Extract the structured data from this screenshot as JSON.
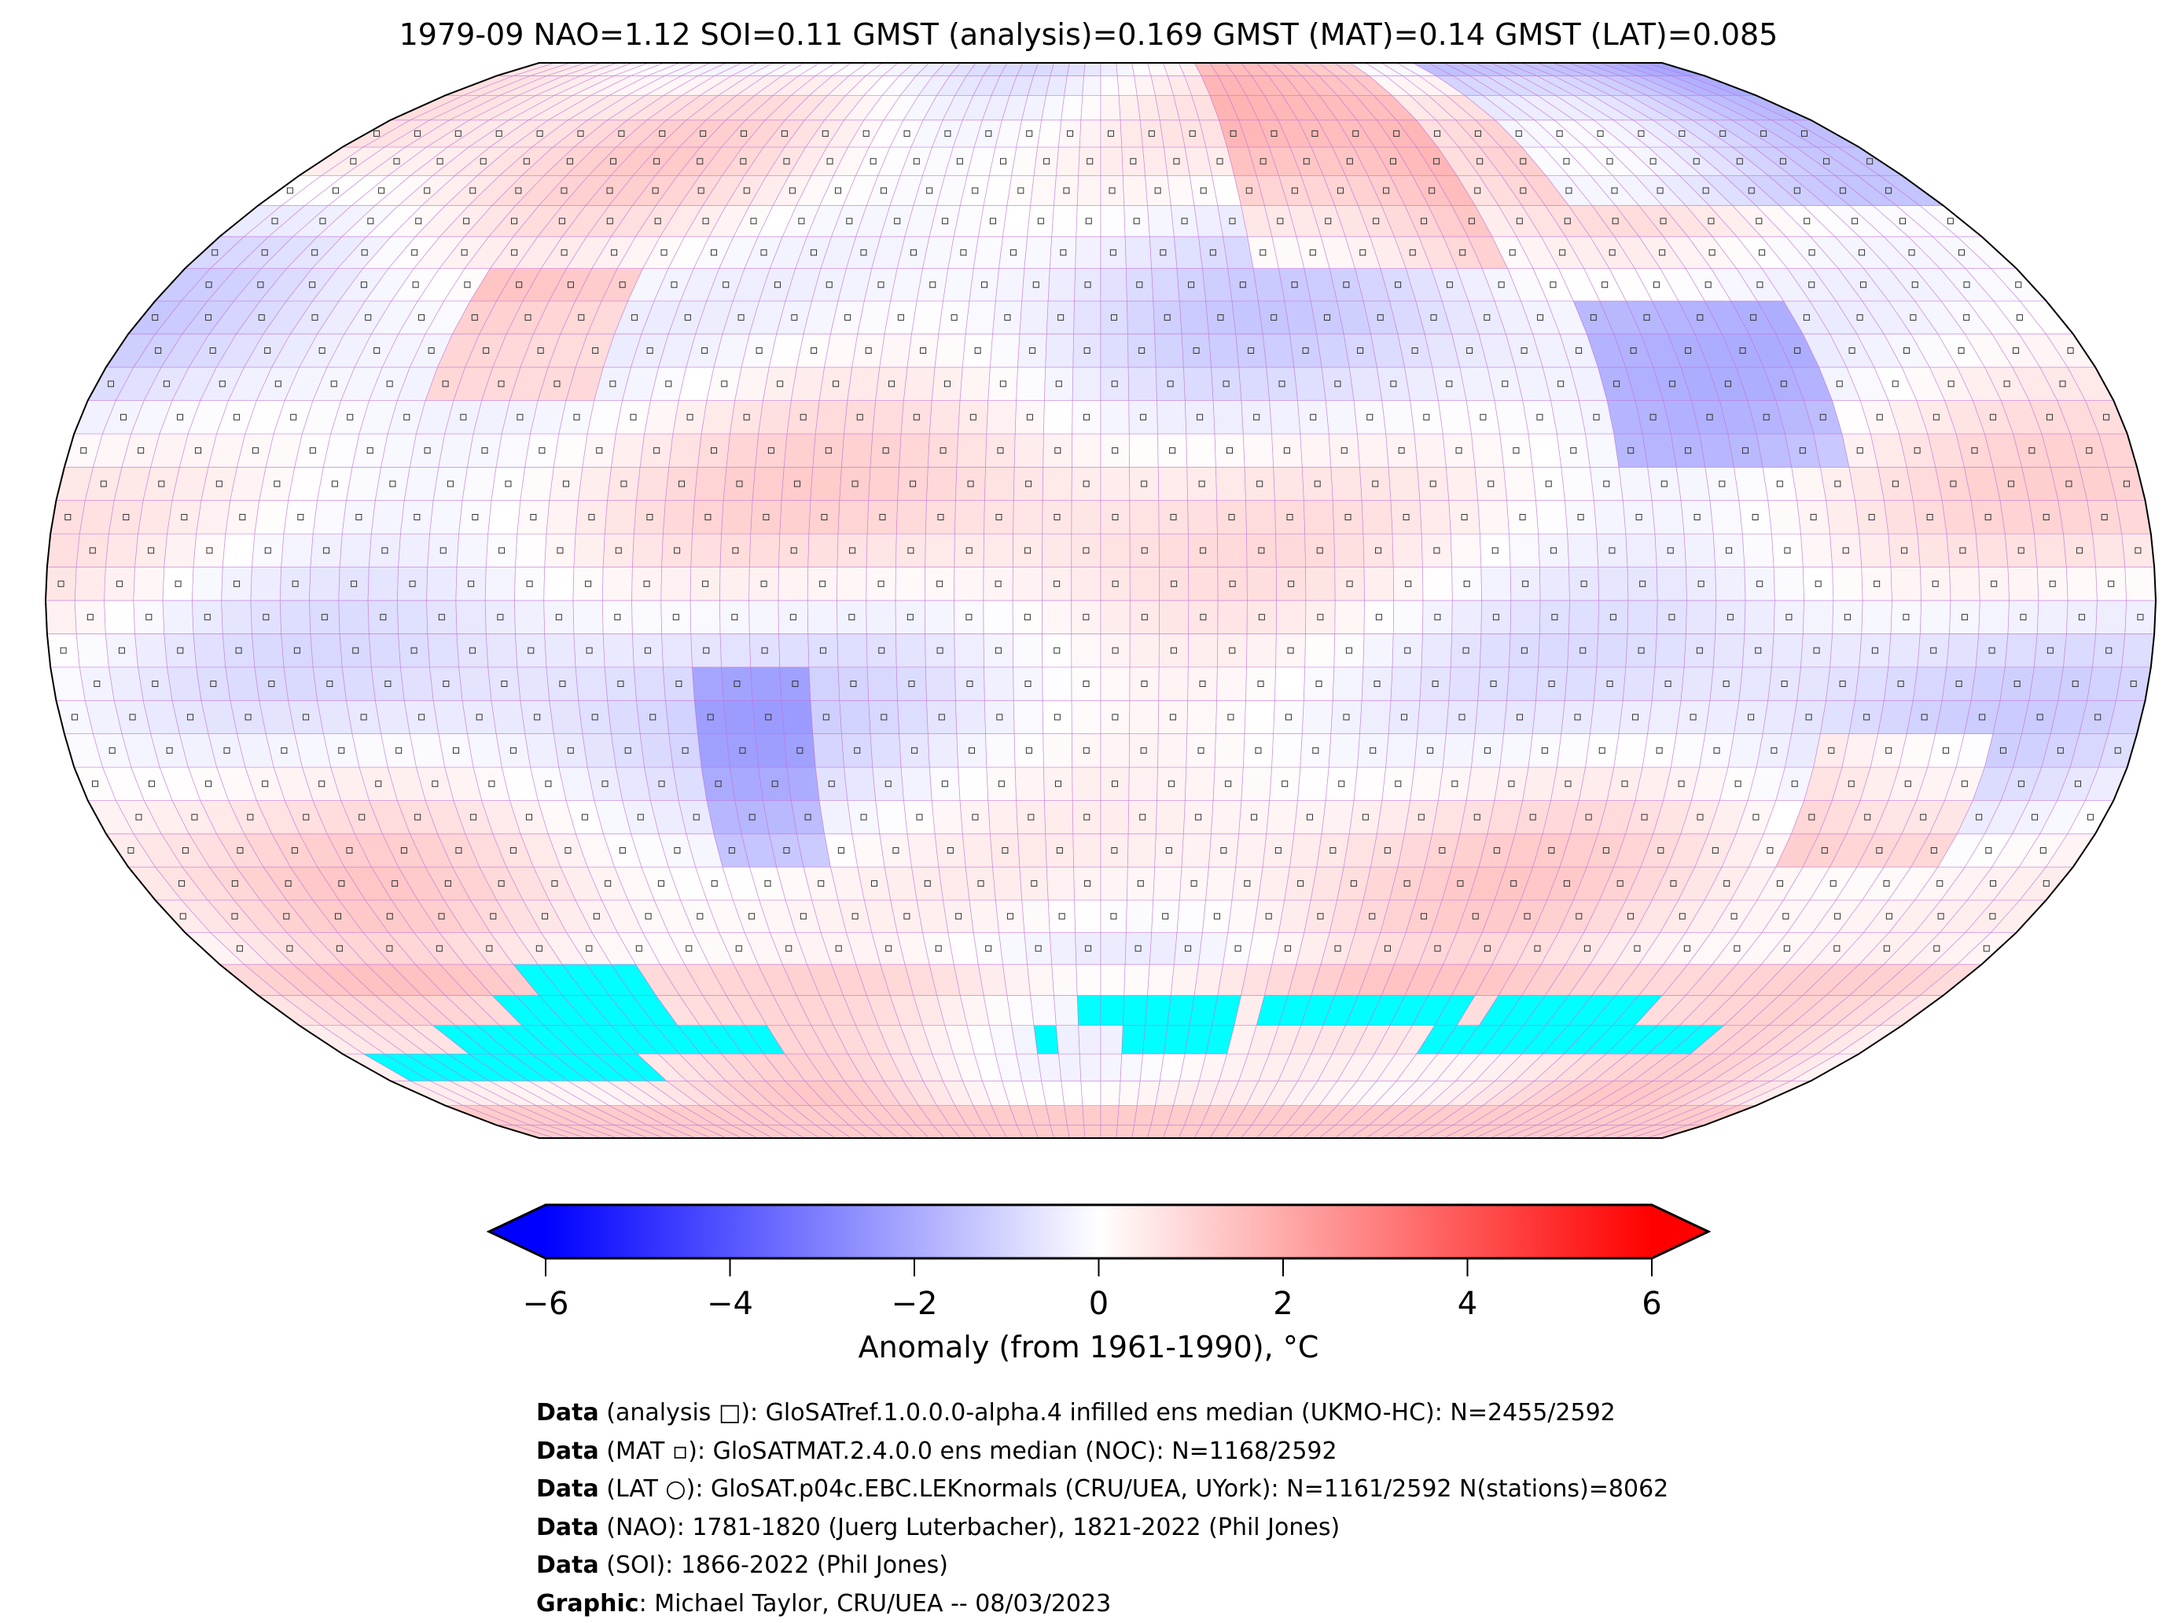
{
  "title": "1979-09 NAO=1.12 SOI=0.11 GMST (analysis)=0.169 GMST (MAT)=0.14 GMST (LAT)=0.085",
  "colorbar": {
    "ticks": [
      "−6",
      "−4",
      "−2",
      "0",
      "2",
      "4",
      "6"
    ],
    "tick_values": [
      -6,
      -4,
      -2,
      0,
      2,
      4,
      6
    ],
    "range": [
      -6,
      6
    ],
    "colors": {
      "low": "#0000ff",
      "mid": "#ffffff",
      "high": "#ff0000",
      "missing_ice": "#00ffff"
    },
    "label": "Anomaly (from 1961-1990), °C"
  },
  "credits": [
    {
      "bold": "Data",
      "text": " (analysis □): GloSATref.1.0.0.0-alpha.4 infilled ens median (UKMO-HC): N=2455/2592"
    },
    {
      "bold": "Data",
      "text": " (MAT ▫): GloSATMAT.2.4.0.0 ens median (NOC): N=1168/2592"
    },
    {
      "bold": "Data",
      "text": " (LAT ○): GloSAT.p04c.EBC.LEKnormals (CRU/UEA, UYork): N=1161/2592 N(stations)=8062"
    },
    {
      "bold": "Data",
      "text": " (NAO): 1781-1820 (Juerg Luterbacher), 1821-2022 (Phil Jones)"
    },
    {
      "bold": "Data",
      "text": " (SOI): 1866-2022 (Phil Jones)"
    },
    {
      "bold": "Graphic",
      "text": ": Michael Taylor, CRU/UEA -- 08/03/2023"
    }
  ]
}
